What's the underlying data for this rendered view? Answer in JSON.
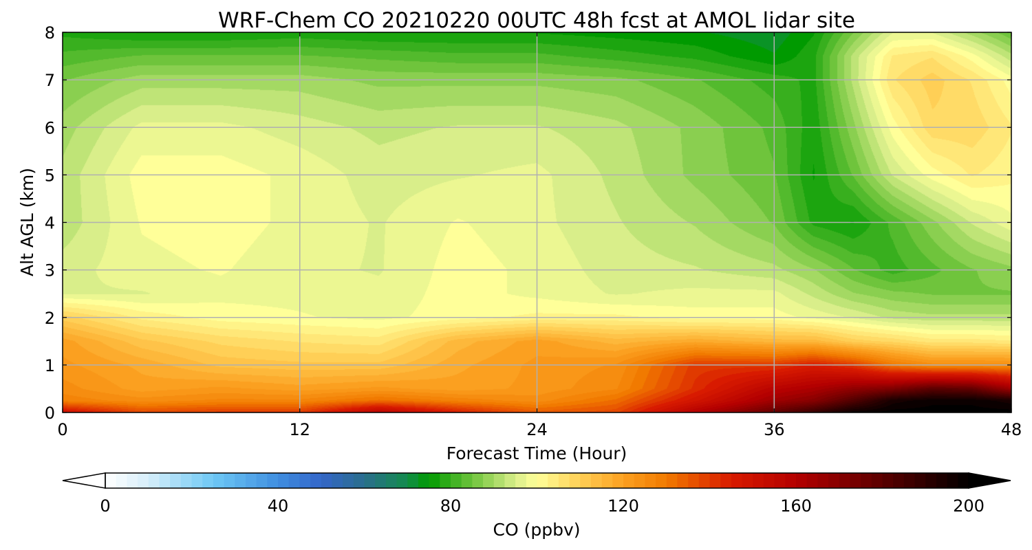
{
  "chart_data": {
    "type": "heatmap",
    "subtype": "filled-contour",
    "title": "WRF-Chem CO  20210220 00UTC 48h fcst at AMOL lidar site",
    "xlabel": "Forecast Time (Hour)",
    "ylabel": "Alt AGL (km)",
    "xlim": [
      0,
      48
    ],
    "ylim": [
      0,
      8
    ],
    "x_ticks": [
      0,
      12,
      24,
      36,
      48
    ],
    "y_ticks": [
      0,
      1,
      2,
      3,
      4,
      5,
      6,
      7,
      8
    ],
    "grid": true,
    "colorbar": {
      "label": "CO  (ppbv)",
      "orientation": "horizontal",
      "placement": "bottom",
      "range": [
        0,
        200
      ],
      "ticks": [
        0,
        40,
        80,
        120,
        160,
        200
      ],
      "extend": "both",
      "color_stops": [
        {
          "value": 0,
          "color": "#ffffff"
        },
        {
          "value": 10,
          "color": "#d6eefa"
        },
        {
          "value": 25,
          "color": "#6ec8f5"
        },
        {
          "value": 40,
          "color": "#3f8ee0"
        },
        {
          "value": 50,
          "color": "#3466c9"
        },
        {
          "value": 60,
          "color": "#2a6e8c"
        },
        {
          "value": 70,
          "color": "#138c4c"
        },
        {
          "value": 75,
          "color": "#009a00"
        },
        {
          "value": 85,
          "color": "#6fc43c"
        },
        {
          "value": 95,
          "color": "#d9ee8a"
        },
        {
          "value": 100,
          "color": "#ffff99"
        },
        {
          "value": 110,
          "color": "#ffcf56"
        },
        {
          "value": 120,
          "color": "#fba020"
        },
        {
          "value": 130,
          "color": "#f17a00"
        },
        {
          "value": 145,
          "color": "#d81a00"
        },
        {
          "value": 160,
          "color": "#b40000"
        },
        {
          "value": 180,
          "color": "#5a0000"
        },
        {
          "value": 200,
          "color": "#000000"
        }
      ]
    },
    "x": [
      0,
      4,
      8,
      12,
      16,
      20,
      24,
      28,
      32,
      36,
      38,
      40,
      42,
      44,
      46,
      48
    ],
    "y": [
      0,
      0.25,
      0.5,
      1,
      1.5,
      2,
      2.5,
      3,
      4,
      5,
      6,
      7,
      7.5,
      8
    ],
    "z": [
      [
        150,
        138,
        140,
        140,
        158,
        145,
        135,
        138,
        160,
        178,
        188,
        198,
        200,
        200,
        200,
        200
      ],
      [
        128,
        125,
        127,
        127,
        132,
        128,
        125,
        132,
        148,
        165,
        170,
        182,
        195,
        198,
        198,
        195
      ],
      [
        125,
        120,
        122,
        120,
        122,
        120,
        122,
        126,
        142,
        158,
        162,
        168,
        172,
        180,
        178,
        165
      ],
      [
        122,
        118,
        113,
        112,
        112,
        118,
        122,
        124,
        140,
        140,
        145,
        140,
        130,
        125,
        125,
        125
      ],
      [
        120,
        112,
        108,
        106,
        105,
        115,
        120,
        115,
        118,
        115,
        115,
        110,
        108,
        105,
        105,
        104
      ],
      [
        110,
        103,
        100,
        99,
        98,
        100,
        102,
        102,
        100,
        100,
        98,
        96,
        93,
        92,
        92,
        92
      ],
      [
        96,
        96,
        98,
        98,
        97,
        100,
        98,
        96,
        97,
        97,
        93,
        89,
        87,
        86,
        86,
        86
      ],
      [
        95,
        98,
        99,
        97,
        96,
        100,
        98,
        95,
        94,
        92,
        89,
        84,
        80,
        83,
        86,
        88
      ],
      [
        92,
        99,
        100,
        98,
        96,
        99,
        97,
        94,
        91,
        86,
        78,
        76,
        82,
        88,
        94,
        98
      ],
      [
        92,
        100,
        100,
        98,
        95,
        96,
        97,
        93,
        88,
        84,
        76,
        84,
        94,
        100,
        104,
        102
      ],
      [
        90,
        97,
        97,
        95,
        93,
        94,
        94,
        92,
        88,
        83,
        77,
        88,
        100,
        108,
        108,
        104
      ],
      [
        86,
        90,
        90,
        90,
        88,
        88,
        88,
        87,
        84,
        80,
        78,
        92,
        106,
        110,
        106,
        100
      ],
      [
        82,
        84,
        84,
        84,
        83,
        82,
        82,
        80,
        78,
        74,
        78,
        92,
        104,
        106,
        100,
        92
      ],
      [
        78,
        76,
        76,
        77,
        76,
        76,
        76,
        75,
        74,
        72,
        76,
        86,
        96,
        96,
        90,
        84
      ]
    ]
  }
}
